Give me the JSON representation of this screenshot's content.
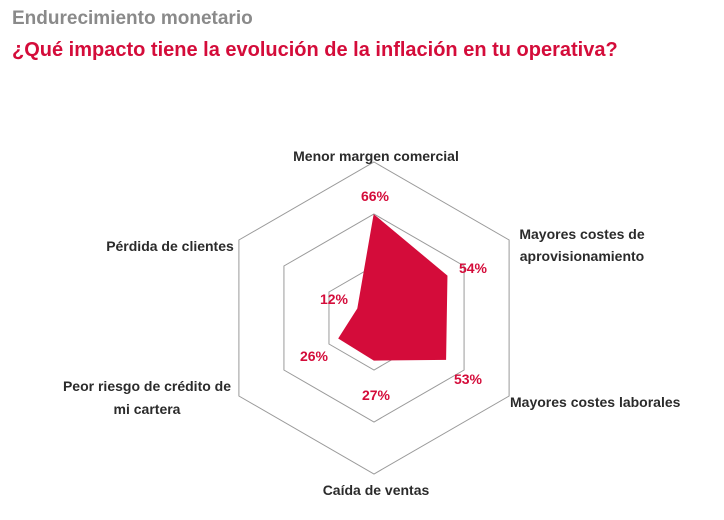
{
  "header": {
    "supertitle": "Endurecimiento monetario",
    "title": "¿Qué impacto tiene la evolución de la inflación en tu operativa?"
  },
  "colors": {
    "accent": "#d40c3a",
    "grid": "#9a9a9a",
    "text": "#2b2b2b",
    "muted": "#8a8a8a"
  },
  "chart_data": {
    "type": "radar",
    "title": "¿Qué impacto tiene la evolución de la inflación en tu operativa?",
    "categories": [
      "Menor margen comercial",
      "Mayores costes de aprovisionamiento",
      "Mayores costes laborales",
      "Caída de ventas",
      "Peor riesgo de crédito de mi cartera",
      "Pérdida de clientes"
    ],
    "values": [
      66,
      54,
      53,
      27,
      26,
      12
    ],
    "value_labels": [
      "66%",
      "54%",
      "53%",
      "27%",
      "26%",
      "12%"
    ],
    "unit": "%",
    "rlim": [
      0,
      100
    ],
    "grid_rings": 3,
    "series": [
      {
        "values": [
          66,
          54,
          53,
          27,
          26,
          12
        ]
      }
    ]
  }
}
